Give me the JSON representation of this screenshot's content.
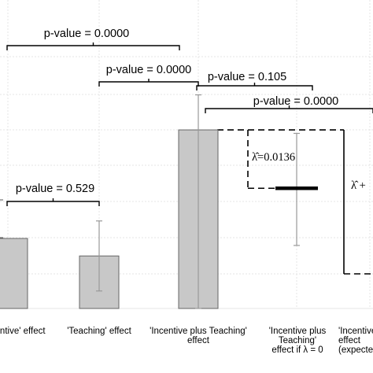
{
  "chart_data": {
    "type": "bar",
    "title": "",
    "xlabel": "",
    "ylabel": "",
    "grid": true,
    "categories": [
      {
        "lines": [
          "'Incentive' effect"
        ]
      },
      {
        "lines": [
          "'Teaching' effect"
        ]
      },
      {
        "lines": [
          "'Incentive plus Teaching'",
          "effect"
        ]
      },
      {
        "lines": [
          "'Incentive plus",
          "Teaching'",
          "effect if  λ = 0"
        ]
      },
      {
        "lines": [
          "'Incentive plus Teaching'",
          "effect",
          "(expected)"
        ]
      }
    ],
    "bars": [
      {
        "category": 0,
        "value": 0.1,
        "ci_low": null,
        "ci_high": null
      },
      {
        "category": 1,
        "value": 0.075,
        "ci_low": 0.025,
        "ci_high": 0.125
      },
      {
        "category": 2,
        "value": 0.255,
        "ci_low": 0.0,
        "ci_high": 0.305
      }
    ],
    "points": [
      {
        "category": 3,
        "value": 0.175,
        "ci_low": 0.09,
        "ci_high": 0.25
      }
    ],
    "bar_color": "#c8c8c8",
    "comparisons": [
      {
        "label": "p-value = 0.529",
        "from": 0,
        "to": 1
      },
      {
        "label": "p-value = 0.0000",
        "from": 0,
        "to": 2
      },
      {
        "label": "p-value = 0.0000",
        "from": 1,
        "to": 2
      },
      {
        "label": "p-value = 0.105",
        "from": 2,
        "to": 3
      },
      {
        "label": "p-value = 0.0000",
        "from": 2,
        "to": 4
      }
    ],
    "annotations": [
      {
        "label": "λ̂=0.0136"
      },
      {
        "label": "λ̂ +"
      }
    ]
  }
}
